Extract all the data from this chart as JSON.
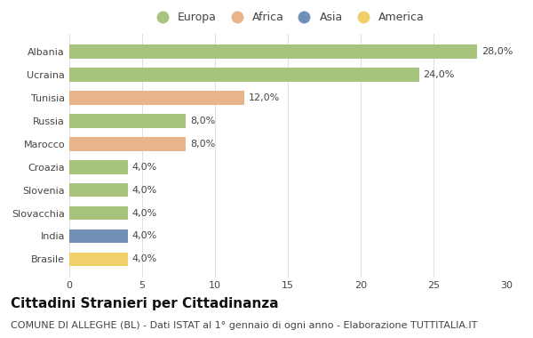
{
  "categories": [
    "Albania",
    "Ucraina",
    "Tunisia",
    "Russia",
    "Marocco",
    "Croazia",
    "Slovenia",
    "Slovacchia",
    "India",
    "Brasile"
  ],
  "values": [
    28.0,
    24.0,
    12.0,
    8.0,
    8.0,
    4.0,
    4.0,
    4.0,
    4.0,
    4.0
  ],
  "bar_colors": [
    "#a8c47c",
    "#a8c47c",
    "#e8b48a",
    "#a8c47c",
    "#e8b48a",
    "#a8c47c",
    "#a8c47c",
    "#a8c47c",
    "#7090b8",
    "#f0d068"
  ],
  "labels": [
    "28,0%",
    "24,0%",
    "12,0%",
    "8,0%",
    "8,0%",
    "4,0%",
    "4,0%",
    "4,0%",
    "4,0%",
    "4,0%"
  ],
  "legend_labels": [
    "Europa",
    "Africa",
    "Asia",
    "America"
  ],
  "legend_colors": [
    "#a8c47c",
    "#e8b48a",
    "#7090b8",
    "#f0d068"
  ],
  "xlim": [
    0,
    30
  ],
  "xticks": [
    0,
    5,
    10,
    15,
    20,
    25,
    30
  ],
  "title": "Cittadini Stranieri per Cittadinanza",
  "subtitle": "COMUNE DI ALLEGHE (BL) - Dati ISTAT al 1° gennaio di ogni anno - Elaborazione TUTTITALIA.IT",
  "bg_color": "#ffffff",
  "grid_color": "#e0e0e0",
  "bar_height": 0.6,
  "title_fontsize": 11,
  "subtitle_fontsize": 8,
  "label_fontsize": 8,
  "tick_fontsize": 8,
  "legend_fontsize": 9,
  "text_color": "#444444"
}
